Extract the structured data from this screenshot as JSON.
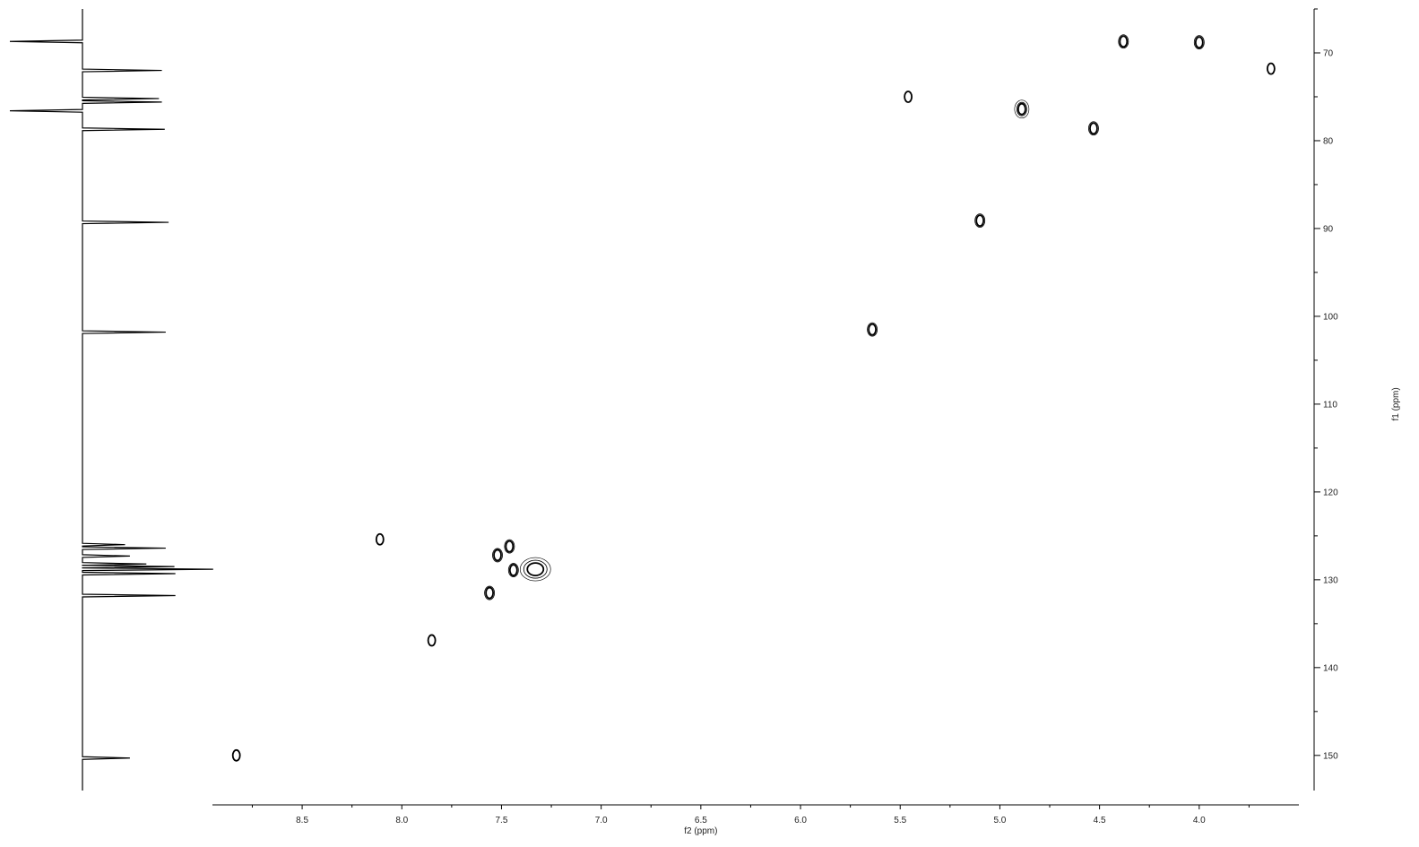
{
  "chart_data": {
    "type": "scatter",
    "subtype": "2D NMR contour plot (HSQC) with 1D projection on left",
    "xlabel": "f2 (ppm)",
    "ylabel": "f1 (ppm)",
    "x_axis_reversed": true,
    "y_axis_reversed": true,
    "xlim": [
      8.95,
      3.5
    ],
    "ylim": [
      65.0,
      154.0
    ],
    "xticks": [
      "8.5",
      "8.0",
      "7.5",
      "7.0",
      "6.5",
      "6.0",
      "5.5",
      "5.0",
      "4.5",
      "4.0"
    ],
    "yticks": [
      "70",
      "80",
      "90",
      "100",
      "110",
      "120",
      "130",
      "140",
      "150"
    ],
    "grid": false,
    "legend": "none",
    "contour_color": "#000000",
    "cross_peaks": [
      {
        "x": 4.38,
        "y": 68.7,
        "levels": 2
      },
      {
        "x": 4.0,
        "y": 68.8,
        "levels": 2
      },
      {
        "x": 3.64,
        "y": 71.8,
        "levels": 1
      },
      {
        "x": 5.46,
        "y": 75.0,
        "levels": 1
      },
      {
        "x": 4.89,
        "y": 76.4,
        "levels": 3
      },
      {
        "x": 4.53,
        "y": 78.6,
        "levels": 2
      },
      {
        "x": 5.1,
        "y": 89.1,
        "levels": 2
      },
      {
        "x": 5.64,
        "y": 101.5,
        "levels": 2
      },
      {
        "x": 8.11,
        "y": 125.4,
        "levels": 1
      },
      {
        "x": 7.46,
        "y": 126.2,
        "levels": 2
      },
      {
        "x": 7.52,
        "y": 127.2,
        "levels": 2
      },
      {
        "x": 7.44,
        "y": 128.9,
        "levels": 2
      },
      {
        "x": 7.33,
        "y": 128.8,
        "levels": 3
      },
      {
        "x": 7.56,
        "y": 131.5,
        "levels": 2
      },
      {
        "x": 7.85,
        "y": 136.9,
        "levels": 1
      },
      {
        "x": 8.83,
        "y": 150.0,
        "levels": 1
      }
    ],
    "projection_f1": {
      "side": "left",
      "peaks": [
        {
          "y": 68.7,
          "height": 0.75
        },
        {
          "y": 72.0,
          "height": 0.82
        },
        {
          "y": 75.2,
          "height": 0.79
        },
        {
          "y": 75.6,
          "height": 0.82
        },
        {
          "y": 76.6,
          "height": 0.75
        },
        {
          "y": 78.7,
          "height": 0.85
        },
        {
          "y": 89.3,
          "height": 0.89
        },
        {
          "y": 101.8,
          "height": 0.86
        },
        {
          "y": 126.0,
          "height": 0.44
        },
        {
          "y": 126.4,
          "height": 0.86
        },
        {
          "y": 127.3,
          "height": 0.49
        },
        {
          "y": 128.2,
          "height": 0.66
        },
        {
          "y": 128.5,
          "height": 0.95
        },
        {
          "y": 128.8,
          "height": 1.35
        },
        {
          "y": 129.3,
          "height": 0.96
        },
        {
          "y": 131.8,
          "height": 0.96
        },
        {
          "y": 150.3,
          "height": 0.49
        }
      ]
    }
  }
}
